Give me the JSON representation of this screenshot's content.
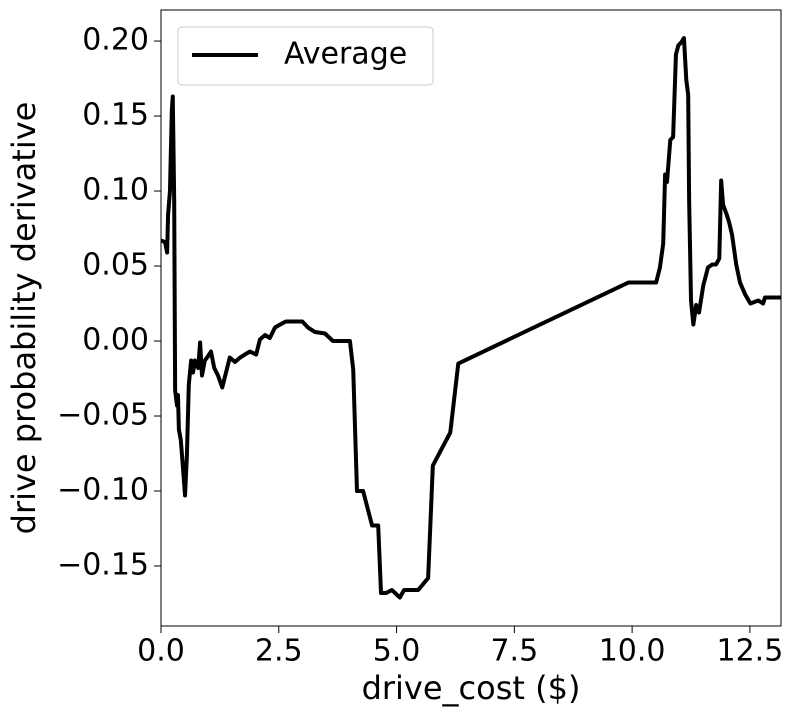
{
  "chart_data": {
    "type": "line",
    "xlabel": "drive_cost ($)",
    "ylabel": "drive probability derivative",
    "x": [
      0,
      0.085,
      0.13,
      0.15,
      0.19,
      0.23,
      0.25,
      0.28,
      0.3,
      0.34,
      0.36,
      0.38,
      0.42,
      0.47,
      0.51,
      0.55,
      0.59,
      0.64,
      0.68,
      0.72,
      0.79,
      0.83,
      0.87,
      0.93,
      1.0,
      1.06,
      1.13,
      1.21,
      1.3,
      1.38,
      1.46,
      1.57,
      1.68,
      1.78,
      1.89,
      2.02,
      2.1,
      2.21,
      2.31,
      2.42,
      2.53,
      2.65,
      2.85,
      3.0,
      3.12,
      3.27,
      3.48,
      3.65,
      4.01,
      4.08,
      4.16,
      4.29,
      4.48,
      4.61,
      4.67,
      4.78,
      4.9,
      5.07,
      5.16,
      5.46,
      5.67,
      5.77,
      6.14,
      6.31,
      9.92,
      10.51,
      10.59,
      10.66,
      10.7,
      10.74,
      10.81,
      10.87,
      10.93,
      10.98,
      11.04,
      11.1,
      11.15,
      11.19,
      11.21,
      11.25,
      11.3,
      11.36,
      11.42,
      11.51,
      11.61,
      11.7,
      11.78,
      11.85,
      11.89,
      11.93,
      12.0,
      12.06,
      12.12,
      12.21,
      12.29,
      12.4,
      12.51,
      12.68,
      12.78,
      12.82,
      13.16
    ],
    "series": [
      {
        "name": "Average",
        "color": "#000000",
        "values": [
          0.067,
          0.066,
          0.059,
          0.084,
          0.1,
          0.154,
          0.163,
          0.094,
          -0.033,
          -0.043,
          -0.036,
          -0.059,
          -0.066,
          -0.086,
          -0.103,
          -0.076,
          -0.029,
          -0.013,
          -0.021,
          -0.013,
          -0.018,
          -0.001,
          -0.023,
          -0.013,
          -0.01,
          -0.007,
          -0.018,
          -0.023,
          -0.031,
          -0.021,
          -0.011,
          -0.014,
          -0.011,
          -0.009,
          -0.007,
          -0.009,
          0.001,
          0.004,
          0.002,
          0.009,
          0.011,
          0.013,
          0.013,
          0.013,
          0.009,
          0.006,
          0.005,
          0.0,
          0.0,
          -0.019,
          -0.1,
          -0.1,
          -0.123,
          -0.123,
          -0.168,
          -0.168,
          -0.166,
          -0.171,
          -0.166,
          -0.166,
          -0.158,
          -0.083,
          -0.061,
          -0.015,
          0.039,
          0.039,
          0.049,
          0.065,
          0.111,
          0.106,
          0.134,
          0.136,
          0.191,
          0.197,
          0.199,
          0.202,
          0.174,
          0.164,
          0.094,
          0.027,
          0.011,
          0.024,
          0.019,
          0.037,
          0.049,
          0.051,
          0.051,
          0.055,
          0.107,
          0.091,
          0.085,
          0.079,
          0.071,
          0.051,
          0.039,
          0.031,
          0.025,
          0.027,
          0.025,
          0.029,
          0.029
        ]
      }
    ],
    "xlim": [
      0,
      13.16
    ],
    "ylim": [
      -0.19,
      0.2207
    ],
    "xticks": [
      {
        "value": 0,
        "label": "0.0"
      },
      2.5,
      {
        "value": 5,
        "label": "5.0"
      },
      7.5,
      {
        "value": 10,
        "label": "10.0"
      },
      12.5
    ],
    "yticks": [
      {
        "value": -0.15,
        "label": "−0.15"
      },
      {
        "value": -0.1,
        "label": "−0.10"
      },
      {
        "value": -0.05,
        "label": "−0.05"
      },
      {
        "value": 0,
        "label": "0.00"
      },
      {
        "value": 0.05,
        "label": "0.05"
      },
      {
        "value": 0.1,
        "label": "0.10"
      },
      {
        "value": 0.15,
        "label": "0.15"
      },
      {
        "value": 0.2,
        "label": "0.20"
      }
    ],
    "legend": "upper left",
    "grid": false
  }
}
